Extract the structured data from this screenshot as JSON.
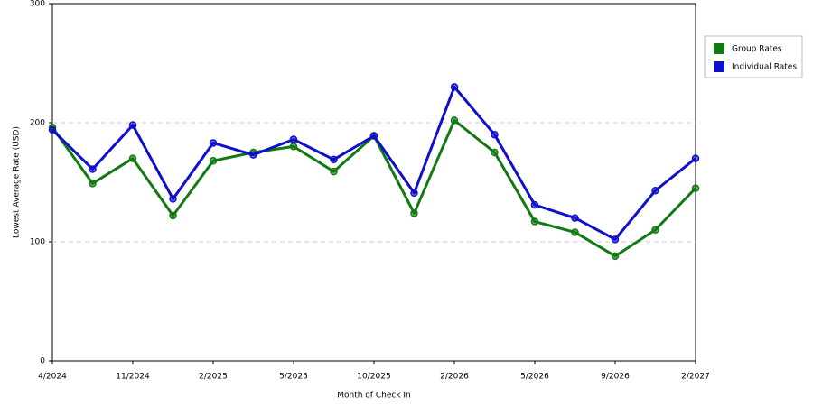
{
  "chart_data": {
    "type": "line",
    "x_label": "Month of Check In",
    "y_label": "Lowest Average Rate (USD)",
    "categories": [
      "4/2024",
      null,
      "11/2024",
      null,
      "2/2025",
      null,
      "5/2025",
      null,
      "10/2025",
      null,
      "2/2026",
      null,
      "5/2026",
      null,
      "9/2026",
      null,
      "2/2027"
    ],
    "series": [
      {
        "name": "Group Rates",
        "color": "#127a12",
        "values": [
          196,
          149,
          170,
          122,
          168,
          175,
          180,
          159,
          189,
          124,
          202,
          175,
          117,
          108,
          88,
          110,
          145
        ]
      },
      {
        "name": "Individual Rates",
        "color": "#1010cc",
        "values": [
          194,
          161,
          198,
          136,
          183,
          173,
          186,
          169,
          189,
          141,
          230,
          190,
          131,
          120,
          102,
          143,
          170
        ]
      }
    ],
    "ylim": [
      0,
      300
    ],
    "yticks": [
      0,
      100,
      200,
      300
    ],
    "grid": true,
    "legend": "right"
  }
}
